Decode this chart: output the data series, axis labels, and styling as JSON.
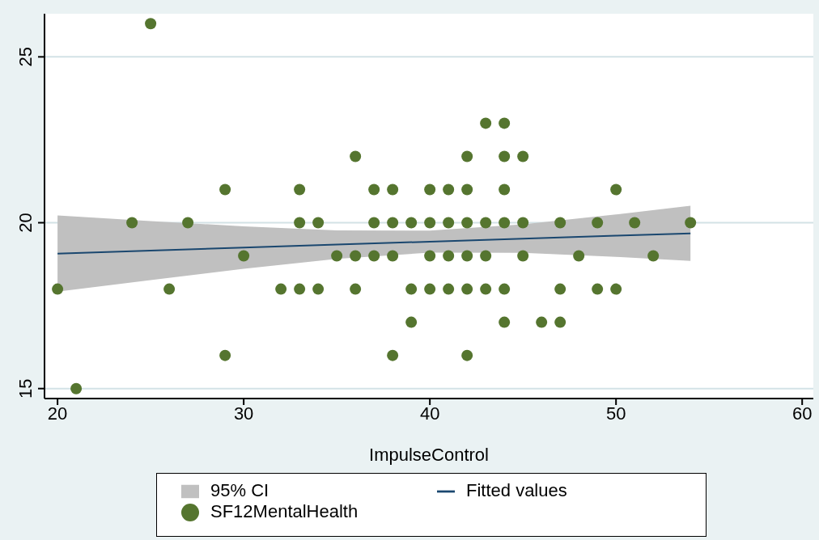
{
  "chart_data": {
    "type": "scatter",
    "xlabel": "ImpulseControl",
    "xlim": [
      19.3,
      60.6
    ],
    "xticks": [
      20,
      30,
      40,
      50,
      60
    ],
    "ylim": [
      14.7,
      26.3
    ],
    "yticks": [
      15,
      20,
      25
    ],
    "grid": "y",
    "legend": "bottom",
    "annotations": [
      "95% CI"
    ],
    "series": [
      {
        "type": "line",
        "name": "Fitted values",
        "color": "#1a476f",
        "x": [
          20,
          25,
          30,
          35,
          40,
          45,
          50,
          54
        ],
        "values": [
          19.07,
          19.16,
          19.25,
          19.34,
          19.43,
          19.52,
          19.61,
          19.68
        ],
        "lower": [
          17.92,
          18.27,
          18.61,
          18.91,
          19.1,
          19.09,
          18.97,
          18.85
        ],
        "upper": [
          20.22,
          20.05,
          19.89,
          19.77,
          19.76,
          19.95,
          20.25,
          20.51
        ]
      },
      {
        "name": "SF12MentalHealth",
        "color": "#55752f",
        "x": [
          20,
          21,
          24,
          25,
          26,
          27,
          29,
          29,
          30,
          32,
          33,
          33,
          33,
          34,
          34,
          35,
          36,
          36,
          36,
          37,
          37,
          37,
          38,
          38,
          38,
          38,
          39,
          39,
          39,
          40,
          40,
          40,
          40,
          41,
          41,
          41,
          41,
          42,
          42,
          42,
          42,
          42,
          42,
          43,
          43,
          43,
          43,
          44,
          44,
          44,
          44,
          44,
          44,
          45,
          45,
          45,
          46,
          47,
          47,
          47,
          48,
          49,
          49,
          50,
          50,
          51,
          52,
          54
        ],
        "values": [
          18,
          15,
          20,
          26,
          18,
          20,
          21,
          16,
          19,
          18,
          21,
          20,
          18,
          20,
          18,
          19,
          22,
          19,
          18,
          21,
          20,
          19,
          21,
          20,
          19,
          16,
          20,
          18,
          17,
          21,
          20,
          19,
          18,
          21,
          20,
          19,
          18,
          22,
          21,
          20,
          19,
          18,
          16,
          23,
          20,
          19,
          18,
          23,
          22,
          21,
          20,
          18,
          17,
          22,
          20,
          19,
          17,
          20,
          18,
          17,
          19,
          20,
          18,
          21,
          18,
          20,
          19,
          20
        ]
      }
    ]
  }
}
